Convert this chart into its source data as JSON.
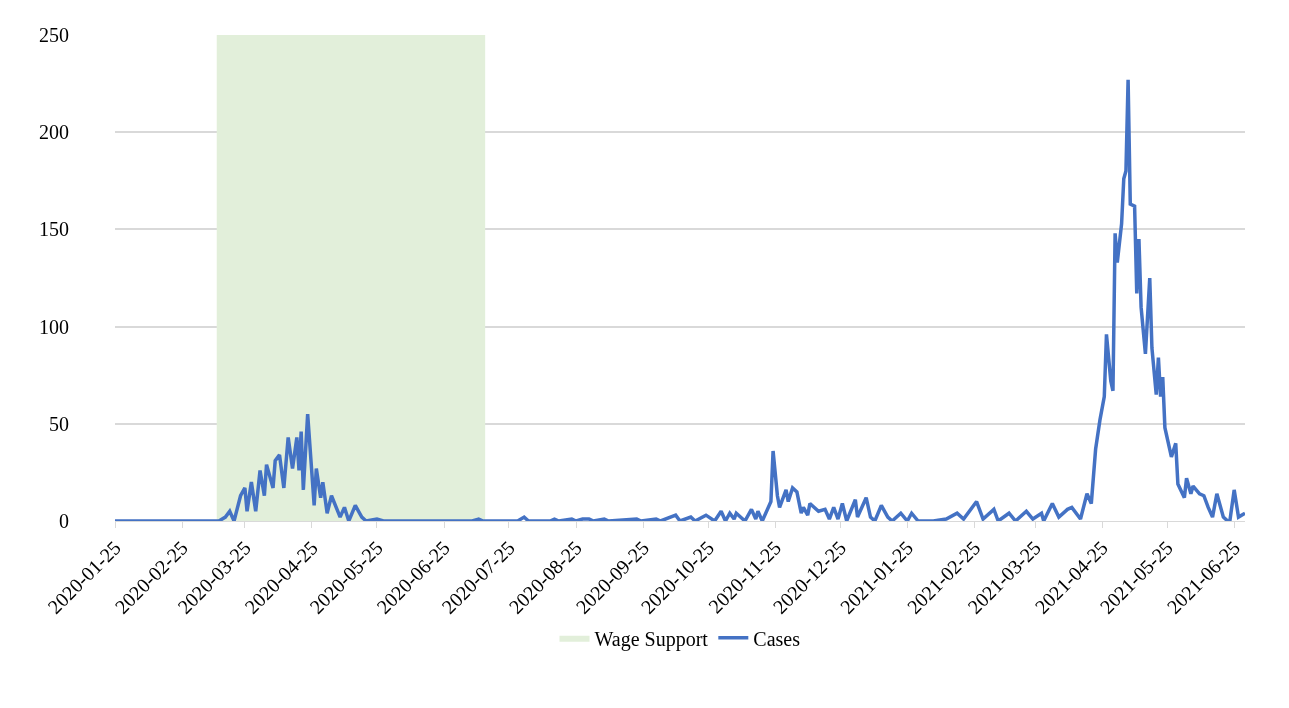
{
  "chart_data": {
    "type": "line",
    "x": [
      "2020-01-25",
      "2020-03-13",
      "2020-03-16",
      "2020-03-18",
      "2020-03-20",
      "2020-03-23",
      "2020-03-25",
      "2020-03-26",
      "2020-03-28",
      "2020-03-30",
      "2020-04-01",
      "2020-04-03",
      "2020-04-04",
      "2020-04-07",
      "2020-04-08",
      "2020-04-10",
      "2020-04-12",
      "2020-04-14",
      "2020-04-16",
      "2020-04-18",
      "2020-04-19",
      "2020-04-20",
      "2020-04-21",
      "2020-04-23",
      "2020-04-26",
      "2020-04-27",
      "2020-04-29",
      "2020-04-30",
      "2020-05-02",
      "2020-05-04",
      "2020-05-08",
      "2020-05-10",
      "2020-05-12",
      "2020-05-15",
      "2020-05-18",
      "2020-05-20",
      "2020-05-25",
      "2020-05-28",
      "2020-07-08",
      "2020-07-11",
      "2020-07-13",
      "2020-07-29",
      "2020-08-01",
      "2020-08-03",
      "2020-08-13",
      "2020-08-15",
      "2020-08-17",
      "2020-08-23",
      "2020-08-25",
      "2020-08-28",
      "2020-08-31",
      "2020-09-02",
      "2020-09-07",
      "2020-09-09",
      "2020-09-22",
      "2020-09-24",
      "2020-10-01",
      "2020-10-03",
      "2020-10-10",
      "2020-10-12",
      "2020-10-17",
      "2020-10-19",
      "2020-10-24",
      "2020-10-28",
      "2020-10-31",
      "2020-11-02",
      "2020-11-04",
      "2020-11-06",
      "2020-11-07",
      "2020-11-11",
      "2020-11-14",
      "2020-11-16",
      "2020-11-17",
      "2020-11-19",
      "2020-11-23",
      "2020-11-24",
      "2020-11-26",
      "2020-11-27",
      "2020-11-30",
      "2020-12-01",
      "2020-12-03",
      "2020-12-05",
      "2020-12-07",
      "2020-12-08",
      "2020-12-10",
      "2020-12-11",
      "2020-12-15",
      "2020-12-18",
      "2020-12-20",
      "2020-12-22",
      "2020-12-24",
      "2020-12-26",
      "2020-12-28",
      "2021-01-01",
      "2021-01-02",
      "2021-01-06",
      "2021-01-08",
      "2021-01-10",
      "2021-01-13",
      "2021-01-16",
      "2021-01-18",
      "2021-01-22",
      "2021-01-25",
      "2021-01-27",
      "2021-01-30",
      "2021-02-06",
      "2021-02-12",
      "2021-02-17",
      "2021-02-20",
      "2021-02-26",
      "2021-03-01",
      "2021-03-06",
      "2021-03-08",
      "2021-03-13",
      "2021-03-16",
      "2021-03-21",
      "2021-03-24",
      "2021-03-28",
      "2021-03-29",
      "2021-04-02",
      "2021-04-05",
      "2021-04-09",
      "2021-04-11",
      "2021-04-15",
      "2021-04-18",
      "2021-04-20",
      "2021-04-22",
      "2021-04-24",
      "2021-04-26",
      "2021-04-27",
      "2021-04-29",
      "2021-04-30",
      "2021-05-01",
      "2021-05-02",
      "2021-05-04",
      "2021-05-05",
      "2021-05-06",
      "2021-05-07",
      "2021-05-08",
      "2021-05-10",
      "2021-05-11",
      "2021-05-12",
      "2021-05-13",
      "2021-05-15",
      "2021-05-17",
      "2021-05-18",
      "2021-05-20",
      "2021-05-21",
      "2021-05-22",
      "2021-05-23",
      "2021-05-24",
      "2021-05-27",
      "2021-05-29",
      "2021-05-30",
      "2021-06-02",
      "2021-06-03",
      "2021-06-05",
      "2021-06-06",
      "2021-06-09",
      "2021-06-11",
      "2021-06-13",
      "2021-06-15",
      "2021-06-17",
      "2021-06-20",
      "2021-06-22",
      "2021-06-23",
      "2021-06-25",
      "2021-06-27",
      "2021-06-30"
    ],
    "series": [
      {
        "name": "Cases",
        "color": "#4472c4",
        "values": [
          0,
          0,
          2,
          5,
          0,
          13,
          17,
          5,
          20,
          5,
          26,
          13,
          29,
          17,
          31,
          34,
          17,
          43,
          27,
          43,
          26,
          46,
          16,
          55,
          8,
          27,
          12,
          20,
          4,
          13,
          2,
          7,
          0,
          8,
          2,
          0,
          1,
          0,
          0,
          1,
          0,
          0,
          2,
          0,
          0,
          1,
          0,
          1,
          0,
          1,
          1,
          0,
          1,
          0,
          1,
          0,
          1,
          0,
          3,
          0,
          2,
          0,
          3,
          0,
          5,
          0,
          4,
          1,
          4,
          0,
          6,
          1,
          5,
          0,
          10,
          36,
          13,
          7,
          16,
          10,
          17,
          15,
          4,
          7,
          3,
          9,
          5,
          6,
          1,
          7,
          1,
          9,
          0,
          11,
          2,
          12,
          2,
          0,
          8,
          2,
          0,
          4,
          0,
          4,
          0,
          0,
          1,
          4,
          1,
          10,
          1,
          6,
          0,
          4,
          0,
          5,
          1,
          4,
          0,
          9,
          2,
          6,
          7,
          1,
          14,
          9,
          37,
          52,
          64,
          96,
          72,
          67,
          148,
          133,
          153,
          176,
          180,
          227,
          163,
          162,
          117,
          145,
          110,
          86,
          125,
          89,
          65,
          84,
          64,
          74,
          48,
          33,
          40,
          19,
          12,
          22,
          14,
          18,
          14,
          13,
          7,
          2,
          14,
          2,
          0,
          0,
          16,
          2,
          4
        ]
      }
    ],
    "bands": [
      {
        "axis": "x",
        "from": "2020-03-12",
        "to": "2020-07-14",
        "label": "Wage Support",
        "color": "#e2efda"
      }
    ],
    "xlim": [
      "2020-01-25",
      "2021-06-30"
    ],
    "xticks": [
      "2020-01-25",
      "2020-02-25",
      "2020-03-25",
      "2020-04-25",
      "2020-05-25",
      "2020-06-25",
      "2020-07-25",
      "2020-08-25",
      "2020-09-25",
      "2020-10-25",
      "2020-11-25",
      "2020-12-25",
      "2021-01-25",
      "2021-02-25",
      "2021-03-25",
      "2021-04-25",
      "2021-05-25",
      "2021-06-25"
    ],
    "ylim": [
      0,
      250
    ],
    "yticks": [
      0,
      50,
      100,
      150,
      200,
      250
    ],
    "grid": "y",
    "legend": "bottom",
    "marker": "none",
    "line_style": "solid"
  }
}
